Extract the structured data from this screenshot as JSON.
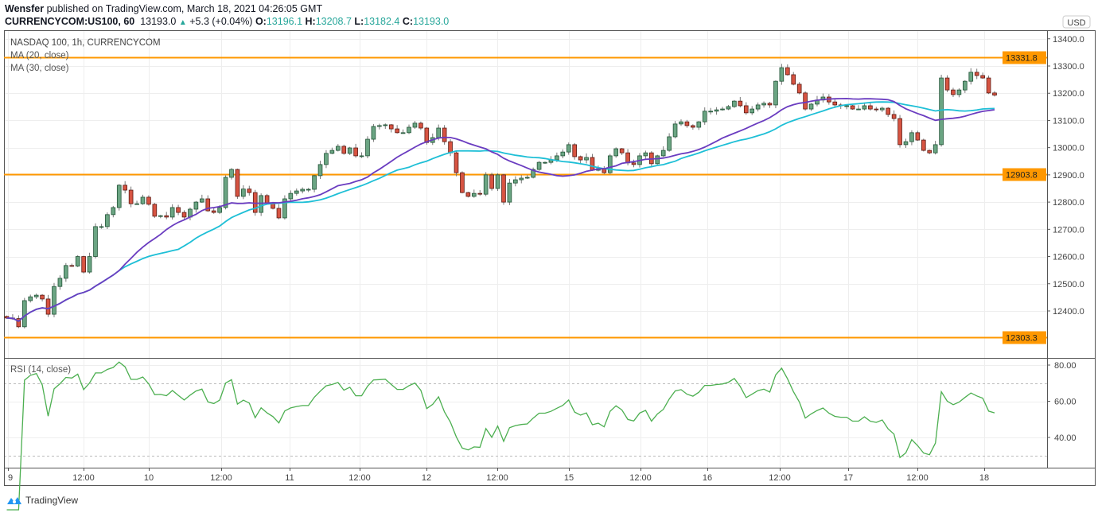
{
  "header": {
    "author": "Wensfer",
    "published_text": "published on TradingView.com, March 18, 2021 04:26:05 GMT",
    "symbol": "CURRENCYCOM:US100, 60",
    "last": "13193.0",
    "change": "+5.3 (+0.04%)",
    "o_label": "O:",
    "o": "13196.1",
    "h_label": "H:",
    "h": "13208.7",
    "l_label": "L:",
    "l": "13182.4",
    "c_label": "C:",
    "c": "13193.0"
  },
  "legend": {
    "title": "NASDAQ 100, 1h, CURRENCYCOM",
    "ma20": "MA (20, close)",
    "ma30": "MA (30, close)",
    "rsi": "RSI (14, close)"
  },
  "currency": "USD",
  "price_ticks": [
    "13400.0",
    "13300.0",
    "13200.0",
    "13100.0",
    "13000.0",
    "12900.0",
    "12800.0",
    "12700.0",
    "12600.0",
    "12500.0",
    "12400.0"
  ],
  "rsi_ticks": [
    "80.00",
    "60.00",
    "40.00"
  ],
  "time_ticks": [
    "9",
    "12:00",
    "10",
    "12:00",
    "11",
    "12:00",
    "12",
    "12:00",
    "15",
    "12:00",
    "16",
    "12:00",
    "17",
    "12:00",
    "18"
  ],
  "levels": [
    {
      "value": 13331.8,
      "label": "13331.8"
    },
    {
      "value": 12903.8,
      "label": "12903.8"
    },
    {
      "value": 12303.3,
      "label": "12303.3"
    }
  ],
  "colors": {
    "up": "#6ba583",
    "up_border": "#225437",
    "down": "#d75442",
    "down_border": "#5b1a13",
    "ma20": "#6a3cc0",
    "ma30": "#1ebfd6",
    "rsi": "#4caf50",
    "level": "#ff9800"
  },
  "chart_data": {
    "type": "candlestick",
    "interval": "1h",
    "ylim": [
      12250,
      13420
    ],
    "rsi_ylim": [
      25,
      85
    ],
    "rsi_bands": [
      70,
      30
    ],
    "first_open": 12380,
    "closes": [
      12374,
      12372,
      12342,
      12438,
      12452,
      12458,
      12444,
      12388,
      12490,
      12520,
      12567,
      12565,
      12600,
      12543,
      12600,
      12710,
      12710,
      12754,
      12780,
      12862,
      12844,
      12794,
      12794,
      12818,
      12792,
      12748,
      12750,
      12745,
      12780,
      12762,
      12745,
      12774,
      12800,
      12812,
      12768,
      12762,
      12780,
      12891,
      12920,
      12821,
      12848,
      12835,
      12762,
      12824,
      12797,
      12777,
      12742,
      12812,
      12832,
      12841,
      12847,
      12847,
      12897,
      12938,
      12979,
      12990,
      13005,
      12979,
      12999,
      12970,
      12970,
      13031,
      13078,
      13081,
      13084,
      13069,
      13055,
      13055,
      13075,
      13090,
      13072,
      13019,
      13037,
      13072,
      13022,
      12981,
      12908,
      12835,
      12821,
      12832,
      12829,
      12900,
      12850,
      12900,
      12800,
      12870,
      12882,
      12888,
      12891,
      12920,
      12946,
      12946,
      12955,
      12970,
      12984,
      13011,
      12967,
      12955,
      12964,
      12917,
      12923,
      12908,
      12970,
      12996,
      12981,
      12944,
      12938,
      12970,
      12981,
      12941,
      12970,
      12990,
      13040,
      13087,
      13095,
      13081,
      13075,
      13095,
      13134,
      13134,
      13139,
      13142,
      13151,
      13171,
      13154,
      13128,
      13142,
      13157,
      13163,
      13157,
      13244,
      13294,
      13268,
      13233,
      13201,
      13142,
      13160,
      13175,
      13186,
      13168,
      13157,
      13154,
      13154,
      13142,
      13142,
      13154,
      13142,
      13139,
      13145,
      13122,
      13107,
      13011,
      13022,
      13055,
      13028,
      12990,
      12981,
      13011,
      13256,
      13212,
      13195,
      13212,
      13244,
      13277,
      13265,
      13256,
      13201,
      13193
    ]
  }
}
